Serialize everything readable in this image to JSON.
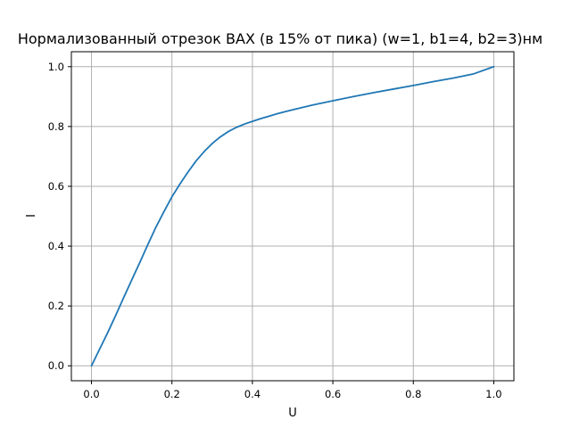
{
  "chart_data": {
    "type": "line",
    "title": "Нормализованный отрезок ВАХ (в 15% от пика) (w=1, b1=4, b2=3)нм",
    "xlabel": "U",
    "ylabel": "I",
    "xlim": [
      -0.05,
      1.05
    ],
    "ylim": [
      -0.05,
      1.05
    ],
    "grid": true,
    "xticks": [
      0.0,
      0.2,
      0.4,
      0.6,
      0.8,
      1.0
    ],
    "xtick_labels": [
      "0.0",
      "0.2",
      "0.4",
      "0.6",
      "0.8",
      "1.0"
    ],
    "yticks": [
      0.0,
      0.2,
      0.4,
      0.6,
      0.8,
      1.0
    ],
    "ytick_labels": [
      "0.0",
      "0.2",
      "0.4",
      "0.6",
      "0.8",
      "1.0"
    ],
    "series": [
      {
        "color": "#1f77b4",
        "x": [
          0.0,
          0.02,
          0.04,
          0.06,
          0.08,
          0.1,
          0.12,
          0.14,
          0.16,
          0.18,
          0.2,
          0.22,
          0.24,
          0.26,
          0.28,
          0.3,
          0.32,
          0.34,
          0.36,
          0.38,
          0.4,
          0.42,
          0.44,
          0.46,
          0.48,
          0.5,
          0.55,
          0.6,
          0.65,
          0.7,
          0.75,
          0.8,
          0.85,
          0.9,
          0.95,
          1.0
        ],
        "y": [
          0.0,
          0.055,
          0.11,
          0.168,
          0.228,
          0.287,
          0.345,
          0.405,
          0.463,
          0.515,
          0.565,
          0.608,
          0.648,
          0.685,
          0.716,
          0.743,
          0.765,
          0.783,
          0.797,
          0.808,
          0.817,
          0.826,
          0.834,
          0.842,
          0.849,
          0.856,
          0.872,
          0.886,
          0.9,
          0.913,
          0.925,
          0.937,
          0.95,
          0.962,
          0.976,
          1.0
        ]
      }
    ]
  }
}
